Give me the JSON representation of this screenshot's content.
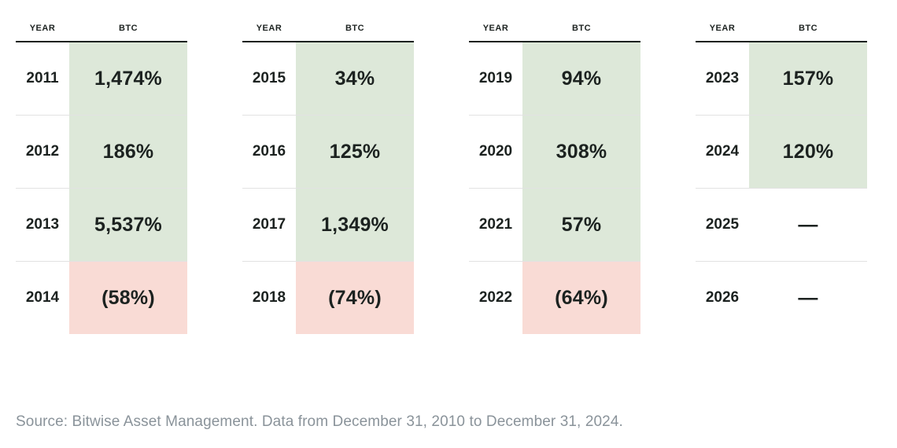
{
  "colors": {
    "background": "#ffffff",
    "positive_bg": "#dde8d9",
    "negative_bg": "#f9dbd5",
    "text": "#1c2220",
    "header_rule": "#1c2220",
    "row_divider": "rgba(28,34,32,0.13)",
    "source_text": "#8a939a"
  },
  "table_header": {
    "year": "YEAR",
    "asset": "BTC"
  },
  "tables": [
    {
      "rows": [
        {
          "year": "2011",
          "value": "1,474%",
          "tone": "positive"
        },
        {
          "year": "2012",
          "value": "186%",
          "tone": "positive"
        },
        {
          "year": "2013",
          "value": "5,537%",
          "tone": "positive"
        },
        {
          "year": "2014",
          "value": "(58%)",
          "tone": "negative"
        }
      ]
    },
    {
      "rows": [
        {
          "year": "2015",
          "value": "34%",
          "tone": "positive"
        },
        {
          "year": "2016",
          "value": "125%",
          "tone": "positive"
        },
        {
          "year": "2017",
          "value": "1,349%",
          "tone": "positive"
        },
        {
          "year": "2018",
          "value": "(74%)",
          "tone": "negative"
        }
      ]
    },
    {
      "rows": [
        {
          "year": "2019",
          "value": "94%",
          "tone": "positive"
        },
        {
          "year": "2020",
          "value": "308%",
          "tone": "positive"
        },
        {
          "year": "2021",
          "value": "57%",
          "tone": "positive"
        },
        {
          "year": "2022",
          "value": "(64%)",
          "tone": "negative"
        }
      ]
    },
    {
      "rows": [
        {
          "year": "2023",
          "value": "157%",
          "tone": "positive"
        },
        {
          "year": "2024",
          "value": "120%",
          "tone": "positive"
        },
        {
          "year": "2025",
          "value": "—",
          "tone": "none"
        },
        {
          "year": "2026",
          "value": "—",
          "tone": "none"
        }
      ]
    }
  ],
  "footer": {
    "source": "Source: Bitwise Asset Management. Data from December 31, 2010 to December 31, 2024."
  },
  "chart_data": {
    "type": "table",
    "title": "BTC annual returns by year",
    "columns": [
      "YEAR",
      "BTC"
    ],
    "years": [
      2011,
      2012,
      2013,
      2014,
      2015,
      2016,
      2017,
      2018,
      2019,
      2020,
      2021,
      2022,
      2023,
      2024,
      2025,
      2026
    ],
    "btc_return_pct": [
      1474,
      186,
      5537,
      -58,
      34,
      125,
      1349,
      -74,
      94,
      308,
      57,
      -64,
      157,
      120,
      null,
      null
    ],
    "display_values": [
      "1,474%",
      "186%",
      "5,537%",
      "(58%)",
      "34%",
      "125%",
      "1,349%",
      "(74%)",
      "94%",
      "308%",
      "57%",
      "(64%)",
      "157%",
      "120%",
      "—",
      "—"
    ],
    "legend_position": "none",
    "grid": false
  }
}
